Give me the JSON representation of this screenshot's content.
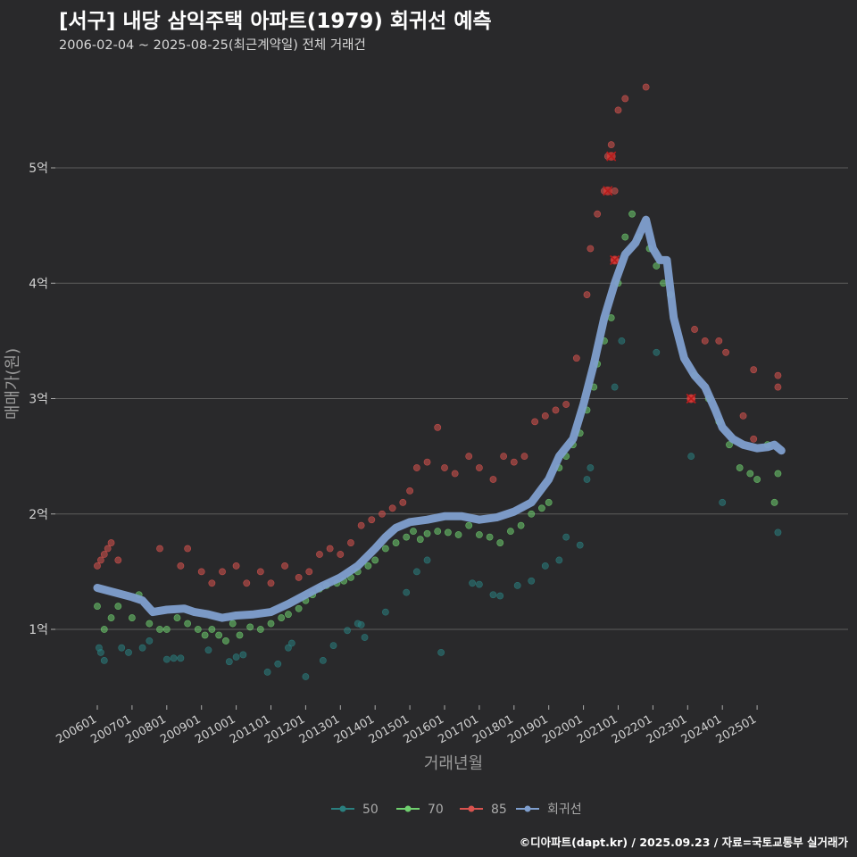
{
  "header": {
    "title": "[서구] 내당 삼익주택 아파트(1979) 회귀선 예측",
    "subtitle": "2006-02-04 ~ 2025-08-25(최근계약일) 전체 거래건"
  },
  "footer": {
    "credit": "©디아파트(dapt.kr) / 2025.09.23 / 자료=국토교통부 실거래가"
  },
  "colors": {
    "background": "#29292b",
    "grid": "#5d5d5d",
    "s50": "#2a7f7f",
    "s70": "#6fcf6f",
    "s85": "#d9534f",
    "regression": "#7f9fcf"
  },
  "chart_data": {
    "type": "scatter",
    "title": "[서구] 내당 삼익주택 아파트(1979) 회귀선 예측",
    "xlabel": "거래년월",
    "ylabel": "매매가(원)",
    "x_ticks": [
      "200601",
      "200701",
      "200801",
      "200901",
      "201001",
      "201101",
      "201201",
      "201301",
      "201401",
      "201501",
      "201601",
      "201701",
      "201801",
      "201901",
      "202001",
      "202101",
      "202201",
      "202301",
      "202401",
      "202501"
    ],
    "y_ticks": [
      {
        "value": 1,
        "label": "1억"
      },
      {
        "value": 2,
        "label": "2억"
      },
      {
        "value": 3,
        "label": "3억"
      },
      {
        "value": 4,
        "label": "4억"
      },
      {
        "value": 5,
        "label": "5억"
      }
    ],
    "y_unit": "억 원",
    "ylim": [
      0.35,
      5.95
    ],
    "xlim": [
      2005.8,
      2025.9
    ],
    "grid": true,
    "legend_position": "bottom",
    "legend": [
      {
        "label": "50",
        "color": "#2a7f7f"
      },
      {
        "label": "70",
        "color": "#6fcf6f"
      },
      {
        "label": "85",
        "color": "#d9534f"
      },
      {
        "label": "회귀선",
        "color": "#7f9fcf"
      }
    ],
    "series": [
      {
        "name": "50",
        "color": "#2a7f7f",
        "points": [
          [
            2006.05,
            0.84
          ],
          [
            2006.1,
            0.8
          ],
          [
            2006.2,
            0.73
          ],
          [
            2006.7,
            0.84
          ],
          [
            2006.9,
            0.8
          ],
          [
            2007.3,
            0.84
          ],
          [
            2007.5,
            0.9
          ],
          [
            2008.0,
            0.74
          ],
          [
            2008.2,
            0.75
          ],
          [
            2008.4,
            0.75
          ],
          [
            2009.2,
            0.82
          ],
          [
            2009.8,
            0.72
          ],
          [
            2010.0,
            0.76
          ],
          [
            2010.2,
            0.78
          ],
          [
            2010.9,
            0.63
          ],
          [
            2011.2,
            0.7
          ],
          [
            2011.5,
            0.84
          ],
          [
            2011.6,
            0.88
          ],
          [
            2012.0,
            0.59
          ],
          [
            2012.5,
            0.73
          ],
          [
            2012.8,
            0.86
          ],
          [
            2013.2,
            0.99
          ],
          [
            2013.5,
            1.05
          ],
          [
            2013.6,
            1.04
          ],
          [
            2013.7,
            0.93
          ],
          [
            2014.3,
            1.15
          ],
          [
            2014.9,
            1.32
          ],
          [
            2015.2,
            1.5
          ],
          [
            2015.5,
            1.6
          ],
          [
            2015.9,
            0.8
          ],
          [
            2016.8,
            1.4
          ],
          [
            2017.0,
            1.39
          ],
          [
            2017.4,
            1.3
          ],
          [
            2017.6,
            1.29
          ],
          [
            2018.1,
            1.38
          ],
          [
            2018.5,
            1.42
          ],
          [
            2018.9,
            1.55
          ],
          [
            2019.3,
            1.6
          ],
          [
            2019.5,
            1.8
          ],
          [
            2019.9,
            1.73
          ],
          [
            2020.1,
            2.3
          ],
          [
            2020.2,
            2.4
          ],
          [
            2020.9,
            3.1
          ],
          [
            2021.1,
            3.5
          ],
          [
            2022.1,
            3.4
          ],
          [
            2023.1,
            2.5
          ],
          [
            2024.0,
            2.1
          ],
          [
            2025.6,
            1.84
          ]
        ]
      },
      {
        "name": "70",
        "color": "#6fcf6f",
        "points": [
          [
            2006.0,
            1.2
          ],
          [
            2006.2,
            1.0
          ],
          [
            2006.4,
            1.1
          ],
          [
            2006.6,
            1.2
          ],
          [
            2007.0,
            1.1
          ],
          [
            2007.2,
            1.3
          ],
          [
            2007.5,
            1.05
          ],
          [
            2007.8,
            1.0
          ],
          [
            2008.0,
            1.0
          ],
          [
            2008.3,
            1.1
          ],
          [
            2008.6,
            1.05
          ],
          [
            2008.9,
            1.0
          ],
          [
            2009.1,
            0.95
          ],
          [
            2009.3,
            1.0
          ],
          [
            2009.5,
            0.95
          ],
          [
            2009.7,
            0.9
          ],
          [
            2009.9,
            1.05
          ],
          [
            2010.1,
            0.95
          ],
          [
            2010.4,
            1.02
          ],
          [
            2010.7,
            1.0
          ],
          [
            2011.0,
            1.05
          ],
          [
            2011.3,
            1.1
          ],
          [
            2011.5,
            1.13
          ],
          [
            2011.8,
            1.18
          ],
          [
            2012.0,
            1.25
          ],
          [
            2012.2,
            1.3
          ],
          [
            2012.4,
            1.35
          ],
          [
            2012.6,
            1.38
          ],
          [
            2012.9,
            1.4
          ],
          [
            2013.1,
            1.42
          ],
          [
            2013.3,
            1.45
          ],
          [
            2013.5,
            1.5
          ],
          [
            2013.8,
            1.55
          ],
          [
            2014.0,
            1.6
          ],
          [
            2014.3,
            1.7
          ],
          [
            2014.6,
            1.75
          ],
          [
            2014.9,
            1.8
          ],
          [
            2015.1,
            1.85
          ],
          [
            2015.3,
            1.78
          ],
          [
            2015.5,
            1.83
          ],
          [
            2015.8,
            1.85
          ],
          [
            2016.1,
            1.84
          ],
          [
            2016.4,
            1.82
          ],
          [
            2016.7,
            1.9
          ],
          [
            2017.0,
            1.82
          ],
          [
            2017.3,
            1.8
          ],
          [
            2017.6,
            1.75
          ],
          [
            2017.9,
            1.85
          ],
          [
            2018.2,
            1.9
          ],
          [
            2018.5,
            2.0
          ],
          [
            2018.8,
            2.05
          ],
          [
            2019.0,
            2.1
          ],
          [
            2019.3,
            2.4
          ],
          [
            2019.5,
            2.5
          ],
          [
            2019.7,
            2.6
          ],
          [
            2019.9,
            2.7
          ],
          [
            2020.1,
            2.9
          ],
          [
            2020.3,
            3.1
          ],
          [
            2020.4,
            3.3
          ],
          [
            2020.6,
            3.5
          ],
          [
            2020.8,
            3.7
          ],
          [
            2021.0,
            4.0
          ],
          [
            2021.2,
            4.4
          ],
          [
            2021.4,
            4.6
          ],
          [
            2021.6,
            4.4
          ],
          [
            2021.9,
            4.3
          ],
          [
            2022.1,
            4.15
          ],
          [
            2022.3,
            4.0
          ],
          [
            2022.5,
            3.9
          ],
          [
            2023.2,
            3.2
          ],
          [
            2023.6,
            3.0
          ],
          [
            2023.9,
            2.8
          ],
          [
            2024.2,
            2.6
          ],
          [
            2024.5,
            2.4
          ],
          [
            2024.8,
            2.35
          ],
          [
            2025.0,
            2.3
          ],
          [
            2025.3,
            2.6
          ],
          [
            2025.5,
            2.1
          ],
          [
            2025.6,
            2.35
          ]
        ]
      },
      {
        "name": "85",
        "color": "#d9534f",
        "points": [
          [
            2006.0,
            1.55
          ],
          [
            2006.1,
            1.6
          ],
          [
            2006.2,
            1.65
          ],
          [
            2006.3,
            1.7
          ],
          [
            2006.4,
            1.75
          ],
          [
            2006.6,
            1.6
          ],
          [
            2007.8,
            1.7
          ],
          [
            2008.4,
            1.55
          ],
          [
            2008.6,
            1.7
          ],
          [
            2009.0,
            1.5
          ],
          [
            2009.3,
            1.4
          ],
          [
            2009.6,
            1.5
          ],
          [
            2010.0,
            1.55
          ],
          [
            2010.3,
            1.4
          ],
          [
            2010.7,
            1.5
          ],
          [
            2011.0,
            1.4
          ],
          [
            2011.4,
            1.55
          ],
          [
            2011.8,
            1.45
          ],
          [
            2012.1,
            1.5
          ],
          [
            2012.4,
            1.65
          ],
          [
            2012.7,
            1.7
          ],
          [
            2013.0,
            1.65
          ],
          [
            2013.3,
            1.75
          ],
          [
            2013.6,
            1.9
          ],
          [
            2013.9,
            1.95
          ],
          [
            2014.2,
            2.0
          ],
          [
            2014.5,
            2.05
          ],
          [
            2014.8,
            2.1
          ],
          [
            2015.0,
            2.2
          ],
          [
            2015.2,
            2.4
          ],
          [
            2015.5,
            2.45
          ],
          [
            2015.8,
            2.75
          ],
          [
            2016.0,
            2.4
          ],
          [
            2016.3,
            2.35
          ],
          [
            2016.7,
            2.5
          ],
          [
            2017.0,
            2.4
          ],
          [
            2017.4,
            2.3
          ],
          [
            2017.7,
            2.5
          ],
          [
            2018.0,
            2.45
          ],
          [
            2018.3,
            2.5
          ],
          [
            2018.6,
            2.8
          ],
          [
            2018.9,
            2.85
          ],
          [
            2019.2,
            2.9
          ],
          [
            2019.5,
            2.95
          ],
          [
            2019.8,
            3.35
          ],
          [
            2020.1,
            3.9
          ],
          [
            2020.2,
            4.3
          ],
          [
            2020.4,
            4.6
          ],
          [
            2020.6,
            4.8
          ],
          [
            2020.7,
            5.1
          ],
          [
            2020.8,
            5.2
          ],
          [
            2020.9,
            4.8
          ],
          [
            2021.0,
            5.5
          ],
          [
            2021.2,
            5.6
          ],
          [
            2021.8,
            5.7
          ],
          [
            2020.9,
            4.2
          ],
          [
            2023.2,
            3.6
          ],
          [
            2023.5,
            3.5
          ],
          [
            2023.9,
            3.5
          ],
          [
            2024.1,
            3.4
          ],
          [
            2024.6,
            2.85
          ],
          [
            2024.9,
            2.65
          ],
          [
            2024.9,
            3.25
          ],
          [
            2025.6,
            3.2
          ],
          [
            2025.6,
            3.1
          ],
          [
            2023.1,
            3.0
          ]
        ]
      }
    ],
    "regression": {
      "name": "회귀선",
      "color": "#7f9fcf",
      "points": [
        [
          2006.0,
          1.36
        ],
        [
          2006.5,
          1.32
        ],
        [
          2007.0,
          1.28
        ],
        [
          2007.3,
          1.25
        ],
        [
          2007.6,
          1.15
        ],
        [
          2008.0,
          1.17
        ],
        [
          2008.5,
          1.18
        ],
        [
          2008.8,
          1.15
        ],
        [
          2009.2,
          1.13
        ],
        [
          2009.6,
          1.1
        ],
        [
          2010.0,
          1.12
        ],
        [
          2010.5,
          1.13
        ],
        [
          2011.0,
          1.15
        ],
        [
          2011.5,
          1.22
        ],
        [
          2012.0,
          1.3
        ],
        [
          2012.5,
          1.38
        ],
        [
          2013.0,
          1.45
        ],
        [
          2013.5,
          1.55
        ],
        [
          2014.0,
          1.7
        ],
        [
          2014.3,
          1.8
        ],
        [
          2014.6,
          1.88
        ],
        [
          2015.0,
          1.93
        ],
        [
          2015.5,
          1.95
        ],
        [
          2016.0,
          1.98
        ],
        [
          2016.5,
          1.98
        ],
        [
          2017.0,
          1.95
        ],
        [
          2017.5,
          1.97
        ],
        [
          2018.0,
          2.02
        ],
        [
          2018.5,
          2.1
        ],
        [
          2019.0,
          2.3
        ],
        [
          2019.3,
          2.5
        ],
        [
          2019.7,
          2.65
        ],
        [
          2020.0,
          2.95
        ],
        [
          2020.3,
          3.3
        ],
        [
          2020.6,
          3.7
        ],
        [
          2020.9,
          4.0
        ],
        [
          2021.2,
          4.25
        ],
        [
          2021.5,
          4.35
        ],
        [
          2021.8,
          4.55
        ],
        [
          2022.0,
          4.3
        ],
        [
          2022.2,
          4.2
        ],
        [
          2022.4,
          4.2
        ],
        [
          2022.6,
          3.7
        ],
        [
          2022.9,
          3.35
        ],
        [
          2023.2,
          3.2
        ],
        [
          2023.5,
          3.1
        ],
        [
          2023.8,
          2.9
        ],
        [
          2024.0,
          2.75
        ],
        [
          2024.3,
          2.65
        ],
        [
          2024.6,
          2.6
        ],
        [
          2025.0,
          2.57
        ],
        [
          2025.3,
          2.58
        ],
        [
          2025.5,
          2.6
        ],
        [
          2025.7,
          2.55
        ]
      ]
    },
    "highlights": [
      [
        2020.7,
        4.8
      ],
      [
        2020.8,
        5.1
      ],
      [
        2020.9,
        4.2
      ],
      [
        2023.1,
        3.0
      ]
    ]
  }
}
